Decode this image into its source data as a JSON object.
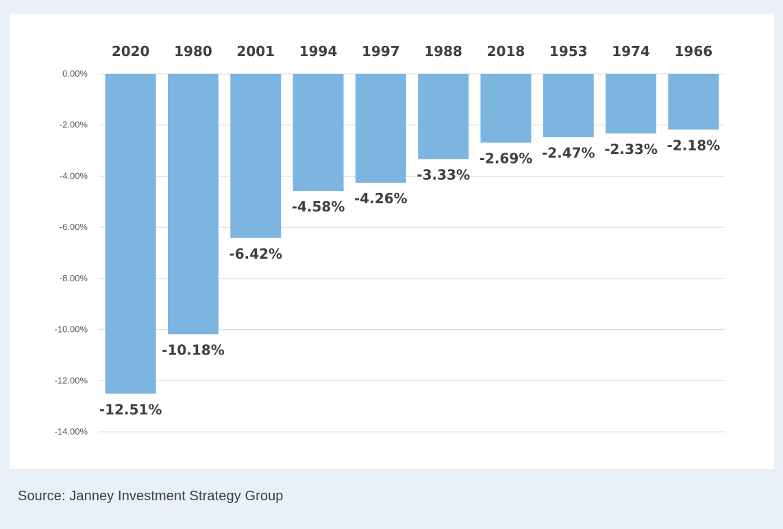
{
  "chart_data": {
    "type": "bar",
    "title": "",
    "xlabel": "",
    "ylabel": "",
    "categories": [
      "2020",
      "1980",
      "2001",
      "1994",
      "1997",
      "1988",
      "2018",
      "1953",
      "1974",
      "1966"
    ],
    "values": [
      -12.51,
      -10.18,
      -6.42,
      -4.58,
      -4.26,
      -3.33,
      -2.69,
      -2.47,
      -2.33,
      -2.18
    ],
    "value_labels": [
      "-12.51%",
      "-10.18%",
      "-6.42%",
      "-4.58%",
      "-4.26%",
      "-3.33%",
      "-2.69%",
      "-2.47%",
      "-2.33%",
      "-2.18%"
    ],
    "ylim": [
      -14,
      0
    ],
    "yticks": [
      0,
      -2,
      -4,
      -6,
      -8,
      -10,
      -12,
      -14
    ],
    "ytick_labels": [
      "0.00%",
      "-2.00%",
      "-4.00%",
      "-6.00%",
      "-8.00%",
      "-10.00%",
      "-12.00%",
      "-14.00%"
    ],
    "category_axis_position": "top",
    "grid": true,
    "bar_color": "#7db5e1"
  },
  "source": {
    "text": "Source: Janney Investment Strategy Group"
  }
}
